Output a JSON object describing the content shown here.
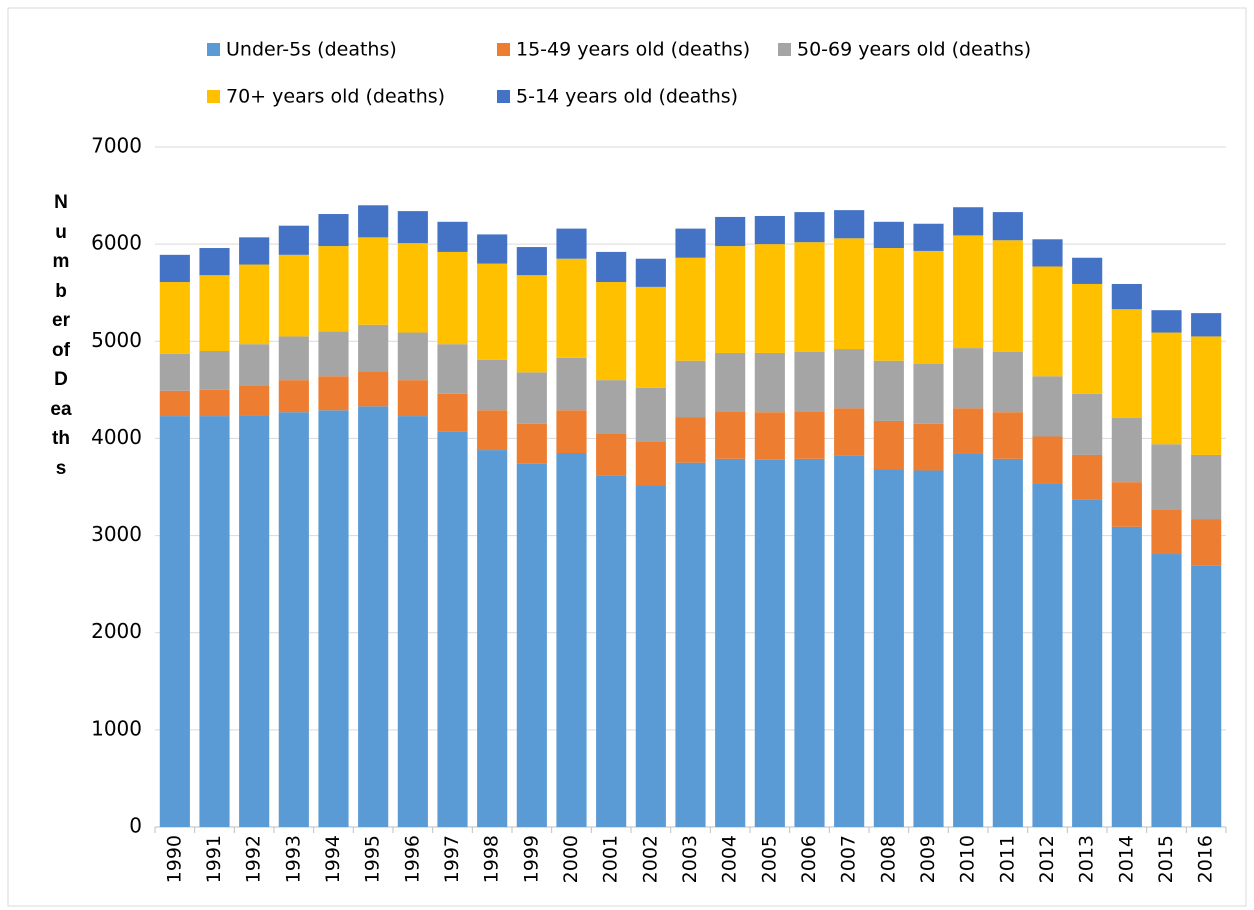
{
  "chart_data": {
    "type": "stacked_bar",
    "y_label": "Number of Deaths",
    "categories": [
      "1990",
      "1991",
      "1992",
      "1993",
      "1994",
      "1995",
      "1996",
      "1997",
      "1998",
      "1999",
      "2000",
      "2001",
      "2002",
      "2003",
      "2004",
      "2005",
      "2006",
      "2007",
      "2008",
      "2009",
      "2010",
      "2011",
      "2012",
      "2013",
      "2014",
      "2015",
      "2016"
    ],
    "series": [
      {
        "name": "Under-5s (deaths)",
        "color": "#5b9bd5",
        "values": [
          4230,
          4230,
          4240,
          4270,
          4290,
          4330,
          4230,
          4070,
          3880,
          3740,
          3850,
          3620,
          3520,
          3750,
          3790,
          3780,
          3790,
          3820,
          3680,
          3670,
          3840,
          3790,
          3540,
          3370,
          3090,
          2810,
          2690
        ]
      },
      {
        "name": "15-49 years old (deaths)",
        "color": "#ed7d31",
        "values": [
          260,
          270,
          300,
          330,
          350,
          360,
          370,
          390,
          410,
          410,
          440,
          430,
          450,
          470,
          490,
          490,
          490,
          490,
          500,
          480,
          470,
          480,
          480,
          460,
          460,
          460,
          480
        ]
      },
      {
        "name": "50-69 years old (deaths)",
        "color": "#a5a5a5",
        "values": [
          380,
          400,
          430,
          450,
          460,
          480,
          490,
          510,
          520,
          530,
          540,
          550,
          550,
          580,
          600,
          610,
          610,
          610,
          620,
          620,
          620,
          620,
          620,
          630,
          660,
          670,
          660
        ]
      },
      {
        "name": "70+ years old (deaths)",
        "color": "#ffc000",
        "values": [
          740,
          780,
          820,
          840,
          880,
          900,
          920,
          950,
          990,
          1000,
          1020,
          1010,
          1040,
          1060,
          1100,
          1120,
          1130,
          1140,
          1160,
          1160,
          1160,
          1150,
          1130,
          1130,
          1120,
          1150,
          1220
        ]
      },
      {
        "name": "5-14 years old (deaths)",
        "color": "#4472c4",
        "values": [
          280,
          280,
          280,
          300,
          330,
          330,
          330,
          310,
          300,
          290,
          310,
          310,
          290,
          300,
          300,
          290,
          310,
          290,
          270,
          280,
          290,
          290,
          280,
          270,
          260,
          230,
          240
        ]
      }
    ],
    "ylim": [
      0,
      7000
    ],
    "yticks": [
      0,
      1000,
      2000,
      3000,
      4000,
      5000,
      6000,
      7000
    ],
    "grid": true
  }
}
